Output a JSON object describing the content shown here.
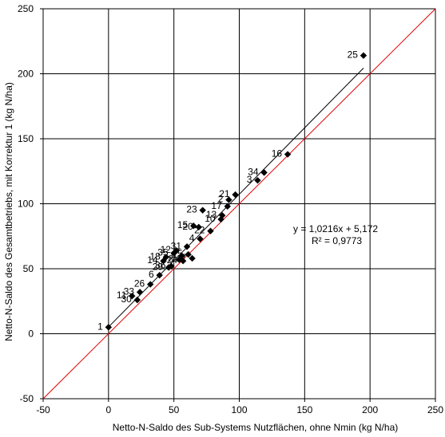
{
  "chart_data": {
    "type": "scatter",
    "xlabel": "Netto-N-Saldo des Sub-Systems Nutzflächen, ohne Nmin (kg N/ha)",
    "ylabel": "Netto-N-Saldo des Gesamtbetriebs, mit Korrektur 1 (kg N/ha)",
    "xlim": [
      -50,
      250
    ],
    "ylim": [
      -50,
      250
    ],
    "xticks": [
      -50,
      0,
      50,
      100,
      150,
      200,
      250
    ],
    "yticks": [
      -50,
      0,
      50,
      100,
      150,
      200,
      250
    ],
    "grid": true,
    "marker": "diamond",
    "marker_color": "#000000",
    "identity_line_color": "#e00000",
    "trend_line_color": "#000000",
    "points": [
      {
        "label": "1",
        "x": 0,
        "y": 5
      },
      {
        "label": "30",
        "x": 22,
        "y": 26
      },
      {
        "label": "11",
        "x": 18,
        "y": 29
      },
      {
        "label": "33",
        "x": 24,
        "y": 32
      },
      {
        "label": "26",
        "x": 32,
        "y": 38
      },
      {
        "label": "6",
        "x": 39,
        "y": 45
      },
      {
        "label": "29",
        "x": 46,
        "y": 51
      },
      {
        "label": "36",
        "x": 48,
        "y": 52
      },
      {
        "label": "14",
        "x": 42,
        "y": 56
      },
      {
        "label": "18",
        "x": 44,
        "y": 59
      },
      {
        "label": "35",
        "x": 50,
        "y": 62
      },
      {
        "label": "8",
        "x": 54,
        "y": 57
      },
      {
        "label": "9",
        "x": 56,
        "y": 60
      },
      {
        "label": "12",
        "x": 52,
        "y": 64
      },
      {
        "label": "24",
        "x": 57,
        "y": 56
      },
      {
        "label": "7",
        "x": 64,
        "y": 58
      },
      {
        "label": "5",
        "x": 61,
        "y": 61
      },
      {
        "label": "31",
        "x": 60,
        "y": 67
      },
      {
        "label": "4",
        "x": 70,
        "y": 73
      },
      {
        "label": "22",
        "x": 78,
        "y": 79
      },
      {
        "label": "15",
        "x": 65,
        "y": 83
      },
      {
        "label": "20",
        "x": 69,
        "y": 82
      },
      {
        "label": "10",
        "x": 86,
        "y": 88
      },
      {
        "label": "13",
        "x": 87,
        "y": 91
      },
      {
        "label": "23",
        "x": 72,
        "y": 95
      },
      {
        "label": "17",
        "x": 91,
        "y": 98
      },
      {
        "label": "2",
        "x": 92,
        "y": 103
      },
      {
        "label": "21",
        "x": 97,
        "y": 107
      },
      {
        "label": "3",
        "x": 114,
        "y": 118
      },
      {
        "label": "34",
        "x": 119,
        "y": 124
      },
      {
        "label": "16",
        "x": 137,
        "y": 138
      },
      {
        "label": "25",
        "x": 195,
        "y": 214
      }
    ],
    "trend_line": {
      "slope": 1.0216,
      "intercept": 5.172,
      "x_range": [
        0,
        195
      ]
    },
    "identity_line": {
      "x_range": [
        -50,
        250
      ]
    },
    "annotations": {
      "equation": "y = 1,0216x + 5,172",
      "r_squared": "R² = 0,9773"
    }
  }
}
